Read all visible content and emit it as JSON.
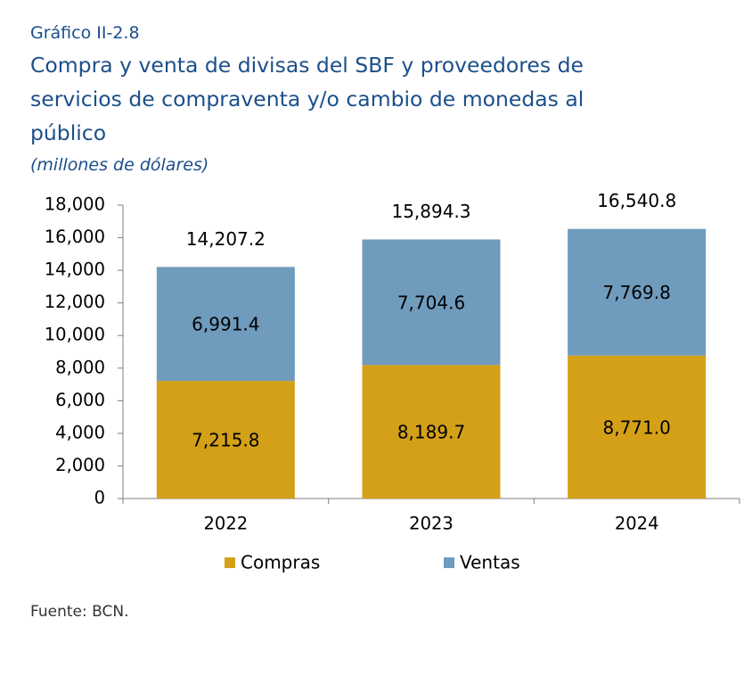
{
  "figure": {
    "number": "Gráfico II-2.8",
    "title": "Compra y venta de divisas del SBF y proveedores de servicios de compraventa y/o cambio de monedas al público",
    "units": "(millones de dólares)",
    "source": "Fuente: BCN."
  },
  "colors": {
    "title": "#1b4f8a",
    "compras": "#d4a017",
    "ventas": "#6f9bbd",
    "axis": "#7f7f7f"
  },
  "chart_data": {
    "type": "bar",
    "stacked": true,
    "categories": [
      "2022",
      "2023",
      "2024"
    ],
    "series": [
      {
        "name": "Compras",
        "values": [
          7215.8,
          8189.7,
          8771.0
        ],
        "labels": [
          "7,215.8",
          "8,189.7",
          "8,771.0"
        ],
        "color": "#d4a017"
      },
      {
        "name": "Ventas",
        "values": [
          6991.4,
          7704.6,
          7769.8
        ],
        "labels": [
          "6,991.4",
          "7,704.6",
          "7,769.8"
        ],
        "color": "#6f9bbd"
      }
    ],
    "totals": [
      14207.2,
      15894.3,
      16540.8
    ],
    "total_labels": [
      "14,207.2",
      "15,894.3",
      "16,540.8"
    ],
    "ylim": [
      0,
      18000
    ],
    "yticks": [
      0,
      2000,
      4000,
      6000,
      8000,
      10000,
      12000,
      14000,
      16000,
      18000
    ],
    "ytick_labels": [
      "0",
      "2,000",
      "4,000",
      "6,000",
      "8,000",
      "10,000",
      "12,000",
      "14,000",
      "16,000",
      "18,000"
    ],
    "grid": false,
    "legend_position": "bottom-center",
    "xlabel": "",
    "ylabel": ""
  }
}
